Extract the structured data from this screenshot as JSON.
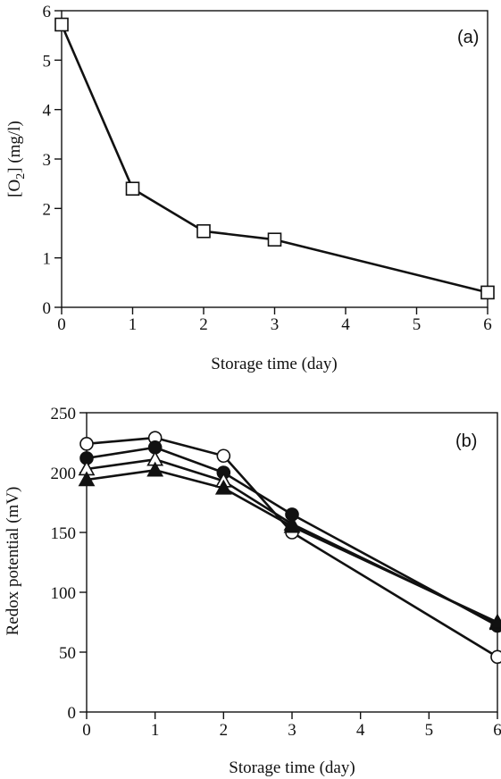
{
  "chart_data": [
    {
      "type": "line",
      "panel_label": "(a)",
      "xlabel": "Storage time (day)",
      "ylabel_prefix": "[O",
      "ylabel_sub": "2",
      "ylabel_suffix": "] (mg/l)",
      "xlim": [
        0,
        6
      ],
      "ylim": [
        0,
        6
      ],
      "xticks": [
        0,
        1,
        2,
        3,
        4,
        5,
        6
      ],
      "yticks": [
        0,
        1,
        2,
        3,
        4,
        5,
        6
      ],
      "grid": false,
      "series": [
        {
          "marker": "open-square",
          "x": [
            0,
            1,
            2,
            3,
            6
          ],
          "y": [
            5.72,
            2.4,
            1.54,
            1.37,
            0.3
          ]
        }
      ]
    },
    {
      "type": "line",
      "panel_label": "(b)",
      "xlabel": "Storage time (day)",
      "ylabel": "Redox potential (mV)",
      "xlim": [
        0,
        6
      ],
      "ylim": [
        0,
        250
      ],
      "xticks": [
        0,
        1,
        2,
        3,
        4,
        5,
        6
      ],
      "yticks": [
        0,
        50,
        100,
        150,
        200,
        250
      ],
      "grid": false,
      "series": [
        {
          "marker": "open-circle",
          "x": [
            0,
            1,
            2,
            3,
            6
          ],
          "y": [
            224,
            229,
            214,
            150,
            46
          ]
        },
        {
          "marker": "filled-circle",
          "x": [
            0,
            1,
            2,
            3,
            6
          ],
          "y": [
            212,
            221,
            200,
            165,
            72
          ]
        },
        {
          "marker": "open-triangle",
          "x": [
            0,
            1,
            2,
            3,
            6
          ],
          "y": [
            203,
            211,
            193,
            157,
            74
          ]
        },
        {
          "marker": "filled-triangle",
          "x": [
            0,
            1,
            2,
            3,
            6
          ],
          "y": [
            194,
            202,
            187,
            155,
            75
          ]
        }
      ]
    }
  ]
}
